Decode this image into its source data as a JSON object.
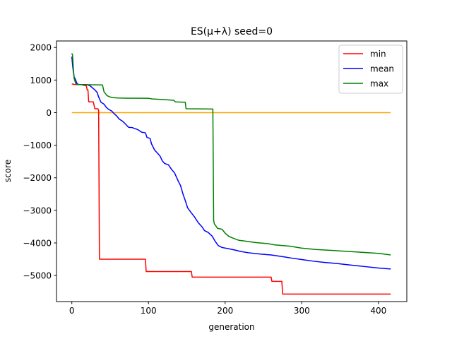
{
  "chart_data": {
    "type": "line",
    "title": "ES(μ+λ) seed=0",
    "xlabel": "generation",
    "ylabel": "score",
    "xlim": [
      -20,
      437
    ],
    "ylim": [
      -5800,
      2200
    ],
    "xticks": [
      0,
      100,
      200,
      300,
      400
    ],
    "yticks": [
      -5000,
      -4000,
      -3000,
      -2000,
      -1000,
      0,
      1000,
      2000
    ],
    "grid": false,
    "legend": "top-right",
    "reference_line": {
      "y": 0,
      "x_start": 0,
      "x_end": 416,
      "color": "#ffa500"
    },
    "series": [
      {
        "name": "min",
        "color": "#ff0000",
        "points": [
          [
            0,
            880
          ],
          [
            5,
            860
          ],
          [
            12,
            860
          ],
          [
            19,
            820
          ],
          [
            20,
            700
          ],
          [
            21,
            700
          ],
          [
            22,
            330
          ],
          [
            28,
            330
          ],
          [
            30,
            120
          ],
          [
            34,
            120
          ],
          [
            35,
            70
          ],
          [
            36,
            -4500
          ],
          [
            96,
            -4500
          ],
          [
            97,
            -4880
          ],
          [
            156,
            -4880
          ],
          [
            157,
            -5050
          ],
          [
            260,
            -5050
          ],
          [
            261,
            -5180
          ],
          [
            274,
            -5180
          ],
          [
            275,
            -5570
          ],
          [
            416,
            -5570
          ]
        ]
      },
      {
        "name": "mean",
        "color": "#0000ff",
        "points": [
          [
            0,
            1720
          ],
          [
            1,
            1450
          ],
          [
            2,
            1250
          ],
          [
            3,
            1100
          ],
          [
            5,
            1000
          ],
          [
            7,
            880
          ],
          [
            10,
            860
          ],
          [
            15,
            860
          ],
          [
            20,
            860
          ],
          [
            24,
            820
          ],
          [
            27,
            760
          ],
          [
            30,
            700
          ],
          [
            33,
            620
          ],
          [
            35,
            480
          ],
          [
            38,
            320
          ],
          [
            42,
            260
          ],
          [
            45,
            160
          ],
          [
            48,
            100
          ],
          [
            52,
            50
          ],
          [
            55,
            -30
          ],
          [
            58,
            -90
          ],
          [
            62,
            -200
          ],
          [
            66,
            -260
          ],
          [
            70,
            -350
          ],
          [
            74,
            -450
          ],
          [
            79,
            -460
          ],
          [
            82,
            -490
          ],
          [
            86,
            -520
          ],
          [
            91,
            -600
          ],
          [
            96,
            -620
          ],
          [
            98,
            -760
          ],
          [
            102,
            -790
          ],
          [
            104,
            -960
          ],
          [
            108,
            -1150
          ],
          [
            112,
            -1250
          ],
          [
            115,
            -1330
          ],
          [
            118,
            -1480
          ],
          [
            121,
            -1560
          ],
          [
            126,
            -1600
          ],
          [
            130,
            -1740
          ],
          [
            134,
            -1850
          ],
          [
            139,
            -2110
          ],
          [
            142,
            -2250
          ],
          [
            145,
            -2500
          ],
          [
            148,
            -2700
          ],
          [
            151,
            -2920
          ],
          [
            155,
            -3050
          ],
          [
            160,
            -3200
          ],
          [
            165,
            -3380
          ],
          [
            170,
            -3510
          ],
          [
            173,
            -3620
          ],
          [
            178,
            -3680
          ],
          [
            183,
            -3790
          ],
          [
            187,
            -3950
          ],
          [
            191,
            -4080
          ],
          [
            196,
            -4140
          ],
          [
            205,
            -4180
          ],
          [
            213,
            -4220
          ],
          [
            220,
            -4260
          ],
          [
            230,
            -4300
          ],
          [
            245,
            -4340
          ],
          [
            260,
            -4370
          ],
          [
            275,
            -4420
          ],
          [
            285,
            -4460
          ],
          [
            300,
            -4510
          ],
          [
            315,
            -4560
          ],
          [
            330,
            -4600
          ],
          [
            345,
            -4630
          ],
          [
            360,
            -4670
          ],
          [
            380,
            -4720
          ],
          [
            400,
            -4770
          ],
          [
            416,
            -4800
          ]
        ]
      },
      {
        "name": "max",
        "color": "#008000",
        "points": [
          [
            0,
            1820
          ],
          [
            1,
            1760
          ],
          [
            2,
            1350
          ],
          [
            3,
            1050
          ],
          [
            5,
            900
          ],
          [
            7,
            860
          ],
          [
            40,
            850
          ],
          [
            42,
            640
          ],
          [
            44,
            580
          ],
          [
            46,
            520
          ],
          [
            50,
            480
          ],
          [
            54,
            460
          ],
          [
            60,
            450
          ],
          [
            70,
            445
          ],
          [
            100,
            440
          ],
          [
            105,
            420
          ],
          [
            120,
            400
          ],
          [
            133,
            380
          ],
          [
            135,
            330
          ],
          [
            148,
            320
          ],
          [
            149,
            120
          ],
          [
            184,
            110
          ],
          [
            185,
            -3300
          ],
          [
            186,
            -3420
          ],
          [
            188,
            -3480
          ],
          [
            190,
            -3550
          ],
          [
            196,
            -3580
          ],
          [
            200,
            -3700
          ],
          [
            205,
            -3800
          ],
          [
            210,
            -3850
          ],
          [
            218,
            -3920
          ],
          [
            228,
            -3950
          ],
          [
            240,
            -3990
          ],
          [
            255,
            -4020
          ],
          [
            265,
            -4060
          ],
          [
            285,
            -4100
          ],
          [
            300,
            -4160
          ],
          [
            318,
            -4200
          ],
          [
            340,
            -4230
          ],
          [
            360,
            -4260
          ],
          [
            380,
            -4290
          ],
          [
            400,
            -4320
          ],
          [
            410,
            -4350
          ],
          [
            416,
            -4370
          ]
        ]
      }
    ]
  }
}
